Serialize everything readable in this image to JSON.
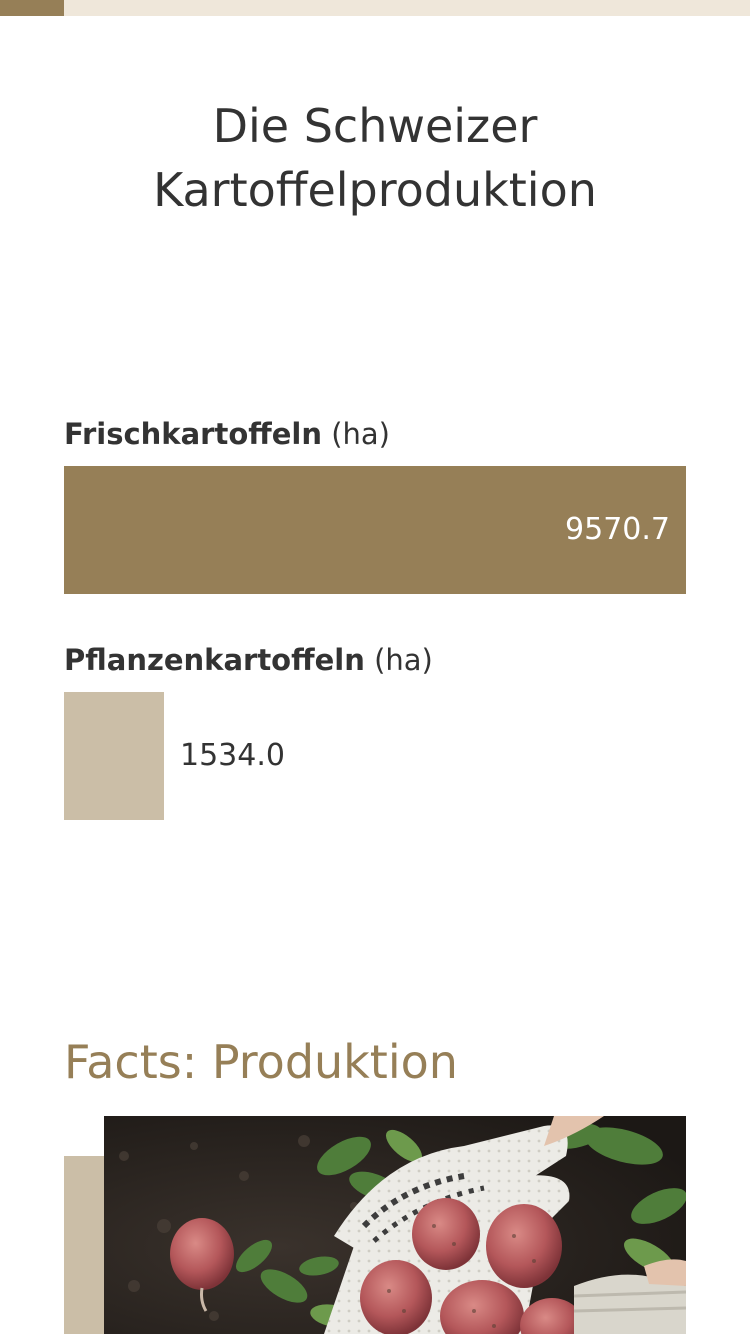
{
  "progress": {
    "fraction": 0.085,
    "fill_color": "#967f57",
    "track_color": "#efe7da"
  },
  "page_title": "Die Schweizer Kartoffelproduktion",
  "chart_data": {
    "type": "bar",
    "orientation": "horizontal",
    "categories": [
      "Frischkartoffeln",
      "Pflanzenkartoffeln"
    ],
    "units": [
      "(ha)",
      "(ha)"
    ],
    "values": [
      9570.7,
      1534.0
    ],
    "value_labels": [
      "9570.7",
      "1534.0"
    ],
    "xlim": [
      0,
      9570.7
    ],
    "colors": [
      "#967f57",
      "#cbbea7"
    ],
    "grid": false
  },
  "section": {
    "title": "Facts: Produktion"
  },
  "photo": {
    "subject": "potatoes-harvest-image",
    "accent_color": "#cbbea7"
  }
}
